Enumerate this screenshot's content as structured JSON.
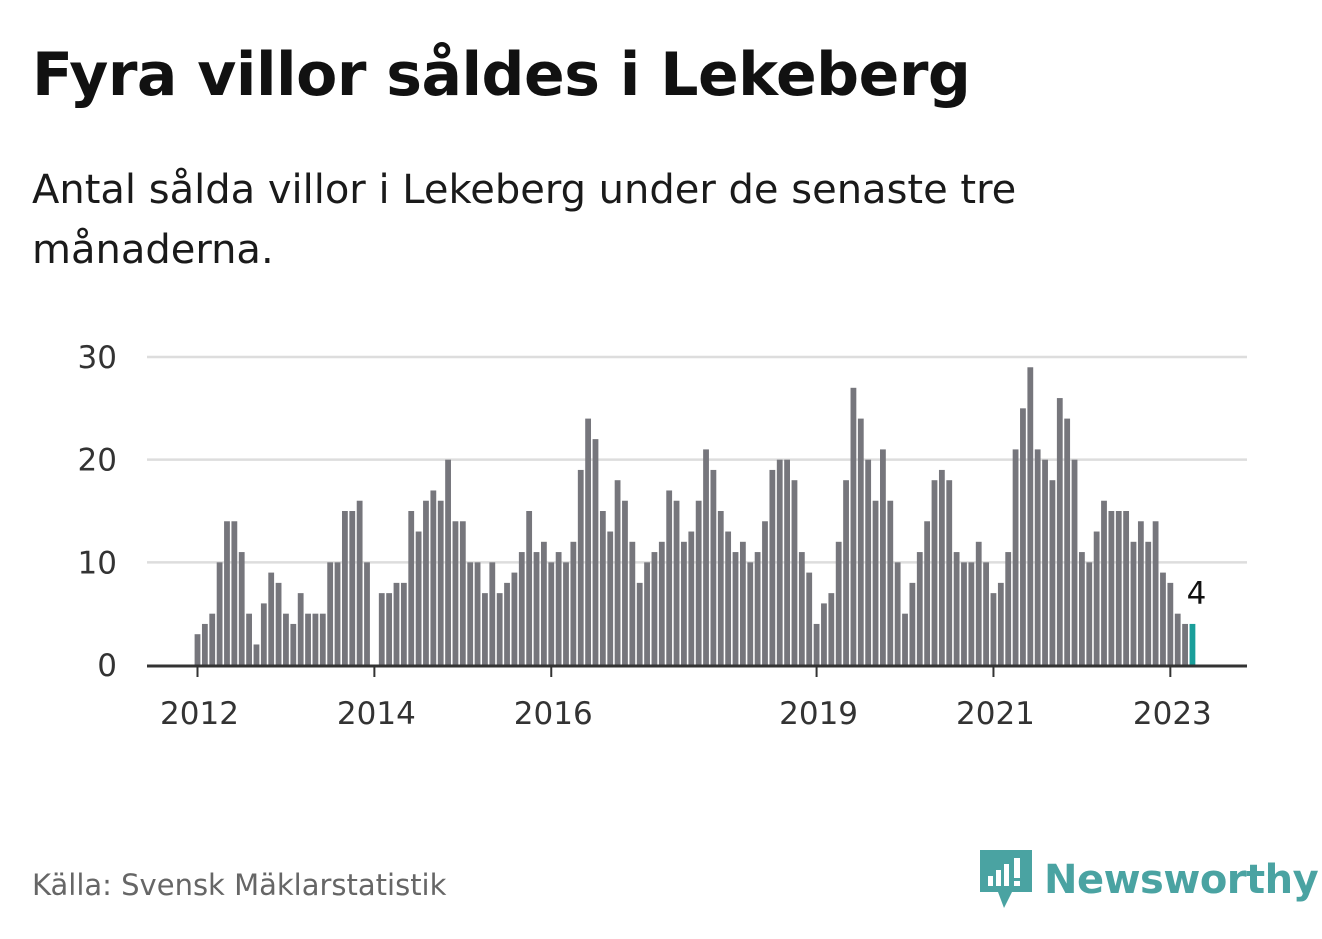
{
  "header": {
    "title": "Fyra villor såldes i Lekeberg",
    "subtitle": "Antal sålda villor i Lekeberg under de senaste tre månaderna."
  },
  "footer": {
    "source": "Källa: Svensk Mäklarstatistik",
    "brand": "Newsworthy"
  },
  "colors": {
    "bar": "#76767c",
    "highlight": "#1a9e9a",
    "grid": "#dddddd",
    "axis": "#333333",
    "brand": "#4aa3a2"
  },
  "chart_data": {
    "type": "bar",
    "title": "Fyra villor såldes i Lekeberg",
    "subtitle": "Antal sålda villor i Lekeberg under de senaste tre månaderna.",
    "ylim": [
      0,
      30
    ],
    "yticks": [
      0,
      10,
      20,
      30
    ],
    "grid": true,
    "xticks": [
      {
        "label": "2012",
        "index": 0
      },
      {
        "label": "2014",
        "index": 24
      },
      {
        "label": "2016",
        "index": 48
      },
      {
        "label": "2019",
        "index": 84
      },
      {
        "label": "2021",
        "index": 108
      },
      {
        "label": "2023",
        "index": 132
      }
    ],
    "start": "2012-01",
    "values": [
      3,
      4,
      5,
      10,
      14,
      14,
      11,
      5,
      2,
      6,
      9,
      8,
      5,
      4,
      7,
      5,
      5,
      5,
      10,
      10,
      15,
      15,
      16,
      10,
      0,
      7,
      7,
      8,
      8,
      15,
      13,
      16,
      17,
      16,
      20,
      14,
      14,
      10,
      10,
      7,
      10,
      7,
      8,
      9,
      11,
      15,
      11,
      12,
      10,
      11,
      10,
      12,
      19,
      24,
      22,
      15,
      13,
      18,
      16,
      12,
      8,
      10,
      11,
      12,
      17,
      16,
      12,
      13,
      16,
      21,
      19,
      15,
      13,
      11,
      12,
      10,
      11,
      14,
      19,
      20,
      20,
      18,
      11,
      9,
      4,
      6,
      7,
      12,
      18,
      27,
      24,
      20,
      16,
      21,
      16,
      10,
      5,
      8,
      11,
      14,
      18,
      19,
      18,
      11,
      10,
      10,
      12,
      10,
      7,
      8,
      11,
      21,
      25,
      29,
      21,
      20,
      18,
      26,
      24,
      20,
      11,
      10,
      13,
      16,
      15,
      15,
      15,
      12,
      14,
      12,
      14,
      9,
      8,
      5,
      4,
      4
    ],
    "highlight_index": 135,
    "annotation": {
      "label": "4",
      "index": 135
    }
  }
}
